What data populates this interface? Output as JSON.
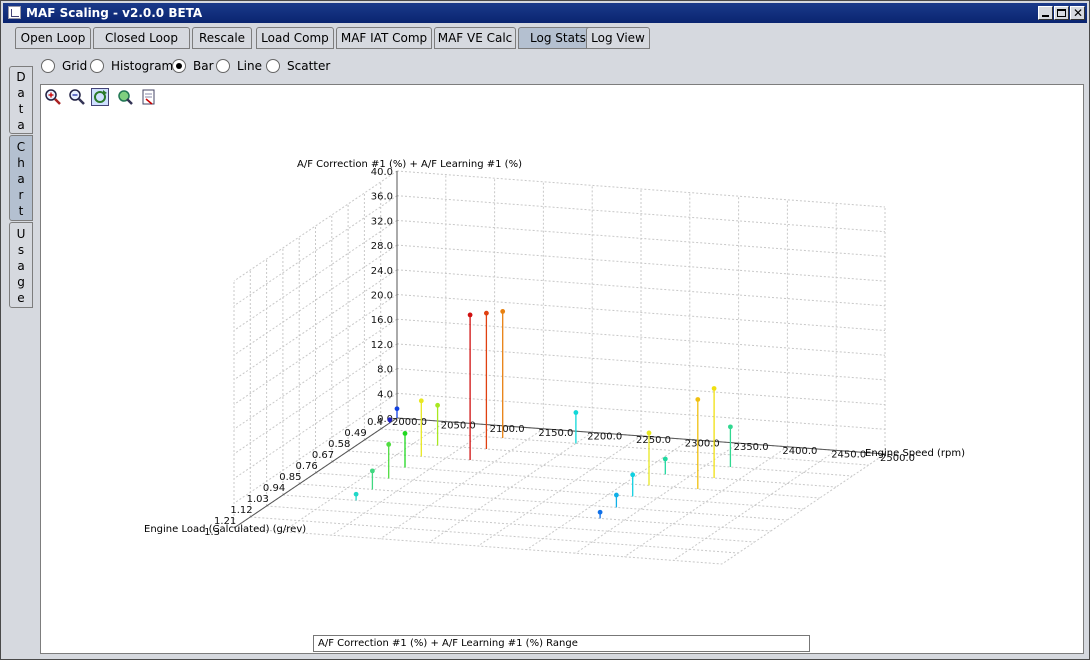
{
  "window": {
    "title": "MAF Scaling - v2.0.0 BETA"
  },
  "tabs": [
    {
      "label": "Open Loop"
    },
    {
      "label": "Closed Loop"
    },
    {
      "label": "Rescale"
    },
    {
      "label": "Load Comp"
    },
    {
      "label": "MAF IAT Comp"
    },
    {
      "label": "MAF VE Calc"
    },
    {
      "label": "Log Stats",
      "selected": true
    },
    {
      "label": "Log View"
    }
  ],
  "side_tabs": [
    {
      "label": "Data"
    },
    {
      "label": "Chart",
      "selected": true
    },
    {
      "label": "Usage"
    }
  ],
  "view_options": [
    {
      "label": "Grid",
      "selected": false
    },
    {
      "label": "Histogram",
      "selected": false
    },
    {
      "label": "Bar",
      "selected": true
    },
    {
      "label": "Line",
      "selected": false
    },
    {
      "label": "Scatter",
      "selected": false
    }
  ],
  "toolbar": [
    "zoom-in-icon",
    "zoom-out-icon",
    "reset-view-icon",
    "rotate-icon",
    "save-image-icon"
  ],
  "legend": {
    "label": "A/F Correction #1 (%) + A/F Learning #1 (%) Range"
  },
  "chart_data": {
    "type": "bar",
    "subtype": "3d-bar",
    "zlabel": "A/F Correction #1 (%) + A/F Learning #1 (%)",
    "xlabel": "Engine Speed (rpm)",
    "ylabel": "Engine Load (Calculated) (g/rev)",
    "x_ticks": [
      "2000.0",
      "2050.0",
      "2100.0",
      "2150.0",
      "2200.0",
      "2250.0",
      "2300.0",
      "2350.0",
      "2400.0",
      "2450.0",
      "2500.0"
    ],
    "y_ticks": [
      "0.4",
      "0.49",
      "0.58",
      "0.67",
      "0.76",
      "0.85",
      "0.94",
      "1.03",
      "1.12",
      "1.21",
      "1.3"
    ],
    "z_ticks": [
      "0.0",
      "4.0",
      "8.0",
      "12.0",
      "16.0",
      "20.0",
      "24.0",
      "28.0",
      "32.0",
      "36.0",
      "40.0"
    ],
    "xlim": [
      2000,
      2500
    ],
    "ylim": [
      0.4,
      1.3
    ],
    "zlim": [
      0,
      40
    ],
    "points": [
      {
        "x": 2000,
        "y": 0.4,
        "z": 1.5,
        "color": "#1040e0"
      },
      {
        "x": 2000,
        "y": 0.44,
        "z": 0.5,
        "color": "#2020c0"
      },
      {
        "x": 2075,
        "y": 1.03,
        "z": 1.0,
        "color": "#20d8c8"
      },
      {
        "x": 2075,
        "y": 0.94,
        "z": 3.0,
        "color": "#40d880"
      },
      {
        "x": 2075,
        "y": 0.85,
        "z": 5.5,
        "color": "#50dd40"
      },
      {
        "x": 2075,
        "y": 0.76,
        "z": 5.5,
        "color": "#20d820"
      },
      {
        "x": 2075,
        "y": 0.67,
        "z": 9.0,
        "color": "#e8e820"
      },
      {
        "x": 2075,
        "y": 0.58,
        "z": 6.5,
        "color": "#a8e820"
      },
      {
        "x": 2125,
        "y": 0.67,
        "z": 23.5,
        "color": "#d01010"
      },
      {
        "x": 2125,
        "y": 0.58,
        "z": 22.0,
        "color": "#e04010"
      },
      {
        "x": 2125,
        "y": 0.49,
        "z": 20.5,
        "color": "#e88010"
      },
      {
        "x": 2200,
        "y": 0.49,
        "z": 5.0,
        "color": "#10d8d8"
      },
      {
        "x": 2325,
        "y": 1.03,
        "z": 1.0,
        "color": "#1070e8"
      },
      {
        "x": 2325,
        "y": 0.94,
        "z": 2.0,
        "color": "#10b0e8"
      },
      {
        "x": 2325,
        "y": 0.85,
        "z": 3.5,
        "color": "#10d0e0"
      },
      {
        "x": 2325,
        "y": 0.76,
        "z": 8.5,
        "color": "#e8e820"
      },
      {
        "x": 2325,
        "y": 0.67,
        "z": 2.5,
        "color": "#20d8a0"
      },
      {
        "x": 2375,
        "y": 0.76,
        "z": 14.5,
        "color": "#f0c010"
      },
      {
        "x": 2375,
        "y": 0.67,
        "z": 14.5,
        "color": "#f0e010"
      },
      {
        "x": 2375,
        "y": 0.58,
        "z": 6.5,
        "color": "#30d890"
      }
    ]
  }
}
